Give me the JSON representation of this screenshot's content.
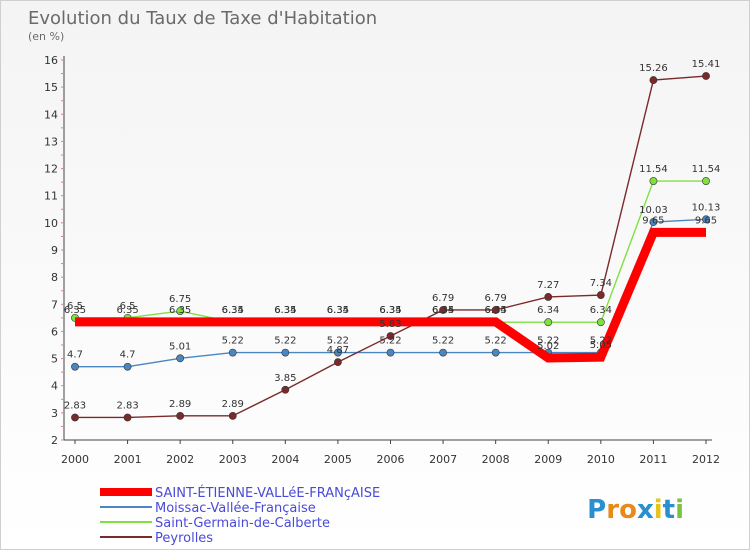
{
  "chart_data": {
    "type": "line",
    "title": "Evolution du Taux de Taxe d'Habitation",
    "subtitle": "(en %)",
    "xlabel": "",
    "ylabel": "",
    "categories": [
      "2000",
      "2001",
      "2002",
      "2003",
      "2004",
      "2005",
      "2006",
      "2007",
      "2008",
      "2009",
      "2010",
      "2011",
      "2012"
    ],
    "ylim": [
      2,
      16
    ],
    "yticks": [
      2,
      3,
      4,
      5,
      6,
      7,
      8,
      9,
      10,
      11,
      12,
      13,
      14,
      15,
      16
    ],
    "grid": false,
    "legend_position": "bottom-left",
    "series": [
      {
        "name": "SAINT-ÉTIENNE-VALLéE-FRANçAISE",
        "color": "#ff0000",
        "emphasis": true,
        "values": [
          6.35,
          6.35,
          6.35,
          6.35,
          6.35,
          6.35,
          6.35,
          6.35,
          6.35,
          5.02,
          5.05,
          9.65,
          9.65
        ],
        "labels": [
          "6.35",
          "6.35",
          "6.35",
          "6.35",
          "6.35",
          "6.35",
          "6.35",
          "6.35",
          "6.35",
          "5.02",
          "5.05",
          "9.65",
          "9.65"
        ]
      },
      {
        "name": "Moissac-Vallée-Française",
        "color": "#4a86c0",
        "values": [
          4.7,
          4.7,
          5.01,
          5.22,
          5.22,
          5.22,
          5.22,
          5.22,
          5.22,
          5.22,
          5.22,
          10.03,
          10.13
        ],
        "labels": [
          "4.7",
          "4.7",
          "5.01",
          "5.22",
          "5.22",
          "5.22",
          "5.22",
          "5.22",
          "5.22",
          "5.22",
          "5.22",
          "10.03",
          "10.13"
        ]
      },
      {
        "name": "Saint-Germain-de-Calberte",
        "color": "#80e040",
        "values": [
          6.5,
          6.5,
          6.75,
          6.34,
          6.34,
          6.34,
          6.34,
          6.34,
          6.34,
          6.34,
          6.34,
          11.54,
          11.54
        ],
        "labels": [
          "6.5",
          "6.5",
          "6.75",
          "6.34",
          "6.34",
          "6.34",
          "6.34",
          "6.34",
          "6.34",
          "6.34",
          "6.34",
          "11.54",
          "11.54"
        ]
      },
      {
        "name": "Peyrolles",
        "color": "#7a2a2a",
        "values": [
          2.83,
          2.83,
          2.89,
          2.89,
          3.85,
          4.87,
          5.83,
          6.79,
          6.79,
          7.27,
          7.34,
          15.26,
          15.41
        ],
        "labels": [
          "2.83",
          "2.83",
          "2.89",
          "2.89",
          "3.85",
          "4.87",
          "5.83",
          "6.79",
          "6.79",
          "7.27",
          "7.34",
          "15.26",
          "15.41"
        ]
      }
    ]
  },
  "logo": {
    "text": "Proxiti"
  }
}
